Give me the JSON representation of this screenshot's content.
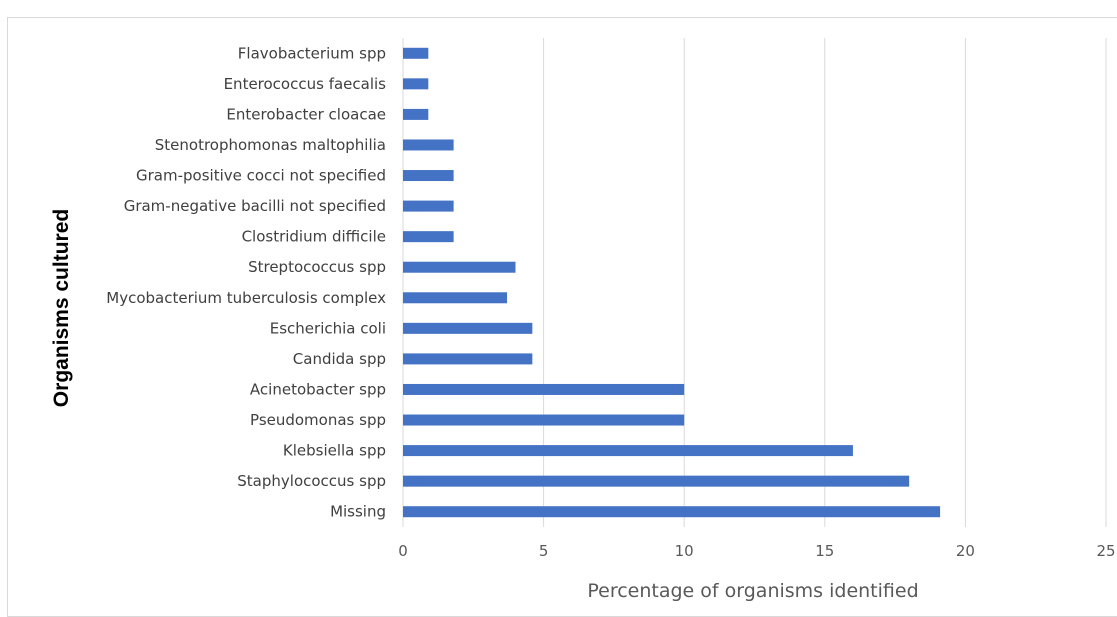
{
  "chart_data": {
    "type": "bar",
    "orientation": "horizontal",
    "categories": [
      "Missing",
      "Staphylococcus spp",
      "Klebsiella spp",
      "Pseudomonas spp",
      "Acinetobacter spp",
      "Candida spp",
      "Escherichia coli",
      "Mycobacterium tuberculosis complex",
      "Streptococcus spp",
      "Clostridium difficile",
      "Gram-negative bacilli not specified",
      "Gram-positive cocci not specified",
      "Stenotrophomonas maltophilia",
      "Enterobacter cloacae",
      "Enterococcus faecalis",
      "Flavobacterium spp"
    ],
    "values": [
      19.1,
      18.0,
      16.0,
      10.0,
      10.0,
      4.6,
      4.6,
      3.7,
      4.0,
      1.8,
      1.8,
      1.8,
      1.8,
      0.9,
      0.9,
      0.9
    ],
    "xlabel": "Percentage of organisms identified",
    "ylabel": "Organisms  cultured",
    "xlim": [
      0,
      25
    ],
    "xticks": [
      "0",
      "5",
      "10",
      "15",
      "20",
      "25"
    ],
    "grid": "vertical",
    "legend": "none",
    "bar_color": "#4472c4",
    "grid_color": "#d9d9d9"
  }
}
